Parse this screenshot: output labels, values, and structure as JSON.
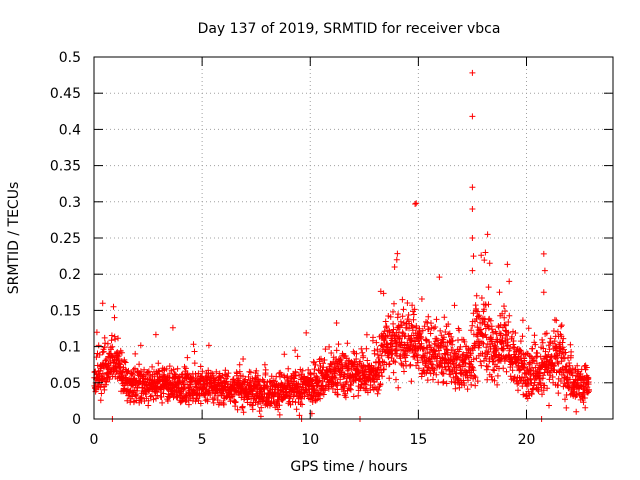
{
  "chart_data": {
    "type": "scatter",
    "title": "Day 137 of 2019, SRMTID for receiver vbca",
    "xlabel": "GPS time / hours",
    "ylabel": "SRMTID / TECUs",
    "xlim": [
      0,
      24
    ],
    "ylim": [
      0,
      0.5
    ],
    "grid": true,
    "marker": "+",
    "marker_color": "#ff0000",
    "x_ticks": [
      0,
      5,
      10,
      15,
      20
    ],
    "x_tick_labels": [
      "0",
      "5",
      "10",
      "15",
      "20"
    ],
    "y_ticks": [
      0,
      0.05,
      0.1,
      0.15,
      0.2,
      0.25,
      0.3,
      0.35,
      0.4,
      0.45,
      0.5
    ],
    "y_tick_labels": [
      "0",
      "0.05",
      "0.1",
      "0.15",
      "0.2",
      "0.25",
      "0.3",
      "0.35",
      "0.4",
      "0.45",
      "0.5"
    ],
    "trend": {
      "x": [
        0.0,
        0.5,
        1.0,
        1.5,
        2.0,
        3.0,
        4.0,
        5.0,
        6.0,
        7.0,
        8.0,
        9.0,
        10.0,
        11.0,
        12.0,
        12.5,
        13.0,
        13.5,
        14.0,
        14.5,
        15.0,
        15.5,
        16.0,
        16.5,
        17.0,
        17.5,
        18.0,
        18.5,
        19.0,
        19.5,
        20.0,
        20.5,
        21.0,
        21.5,
        22.0,
        22.5,
        22.9
      ],
      "center": [
        0.05,
        0.07,
        0.08,
        0.05,
        0.045,
        0.05,
        0.045,
        0.045,
        0.045,
        0.04,
        0.04,
        0.04,
        0.045,
        0.06,
        0.065,
        0.06,
        0.06,
        0.1,
        0.11,
        0.11,
        0.1,
        0.09,
        0.09,
        0.08,
        0.07,
        0.09,
        0.13,
        0.09,
        0.11,
        0.08,
        0.06,
        0.07,
        0.08,
        0.09,
        0.06,
        0.05,
        0.05
      ],
      "spread": [
        0.02,
        0.03,
        0.03,
        0.02,
        0.02,
        0.02,
        0.02,
        0.02,
        0.02,
        0.02,
        0.02,
        0.02,
        0.02,
        0.025,
        0.025,
        0.02,
        0.025,
        0.04,
        0.04,
        0.04,
        0.035,
        0.03,
        0.03,
        0.03,
        0.03,
        0.04,
        0.05,
        0.04,
        0.04,
        0.03,
        0.03,
        0.03,
        0.04,
        0.04,
        0.025,
        0.02,
        0.02
      ]
    },
    "points_per_hour": 120,
    "x_end": 22.9,
    "outliers": [
      {
        "x": 0.4,
        "y": 0.16
      },
      {
        "x": 0.9,
        "y": 0.155
      },
      {
        "x": 0.95,
        "y": 0.14
      },
      {
        "x": 0.85,
        "y": 0.0
      },
      {
        "x": 9.3,
        "y": 0.095
      },
      {
        "x": 9.5,
        "y": 0.005
      },
      {
        "x": 9.6,
        "y": 0.0
      },
      {
        "x": 12.3,
        "y": 0.0
      },
      {
        "x": 13.9,
        "y": 0.21
      },
      {
        "x": 14.0,
        "y": 0.22
      },
      {
        "x": 14.9,
        "y": 0.298
      },
      {
        "x": 14.85,
        "y": 0.297
      },
      {
        "x": 17.5,
        "y": 0.478
      },
      {
        "x": 17.5,
        "y": 0.418
      },
      {
        "x": 17.5,
        "y": 0.32
      },
      {
        "x": 17.5,
        "y": 0.29
      },
      {
        "x": 17.5,
        "y": 0.25
      },
      {
        "x": 17.55,
        "y": 0.225
      },
      {
        "x": 17.5,
        "y": 0.205
      },
      {
        "x": 18.1,
        "y": 0.23
      },
      {
        "x": 18.2,
        "y": 0.255
      },
      {
        "x": 18.3,
        "y": 0.215
      },
      {
        "x": 19.2,
        "y": 0.19
      },
      {
        "x": 20.8,
        "y": 0.228
      },
      {
        "x": 20.85,
        "y": 0.205
      },
      {
        "x": 20.8,
        "y": 0.175
      },
      {
        "x": 20.7,
        "y": 0.0
      },
      {
        "x": 22.3,
        "y": 0.01
      }
    ]
  }
}
